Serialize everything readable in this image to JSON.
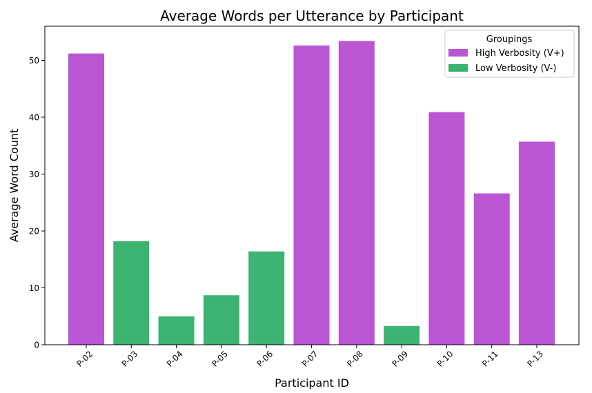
{
  "chart_data": {
    "type": "bar",
    "title": "Average Words per Utterance by Participant",
    "xlabel": "Participant ID",
    "ylabel": "Average Word Count",
    "ylim": [
      0,
      56
    ],
    "yticks": [
      0,
      10,
      20,
      30,
      40,
      50
    ],
    "grid": false,
    "categories": [
      "P-02",
      "P-03",
      "P-04",
      "P-05",
      "P-06",
      "P-07",
      "P-08",
      "P-09",
      "P-10",
      "P-11",
      "P-13"
    ],
    "values": [
      51.2,
      18.2,
      5.0,
      8.7,
      16.4,
      52.6,
      53.4,
      3.3,
      40.9,
      26.6,
      35.7
    ],
    "groups": [
      "high",
      "low",
      "low",
      "low",
      "low",
      "high",
      "high",
      "low",
      "high",
      "high",
      "high"
    ],
    "legend": {
      "title": "Groupings",
      "position": "top-right",
      "entries": [
        {
          "key": "high",
          "label": "High Verbosity (V+)",
          "color": "#ba55d3"
        },
        {
          "key": "low",
          "label": "Low Verbosity (V-)",
          "color": "#3cb371"
        }
      ]
    }
  }
}
